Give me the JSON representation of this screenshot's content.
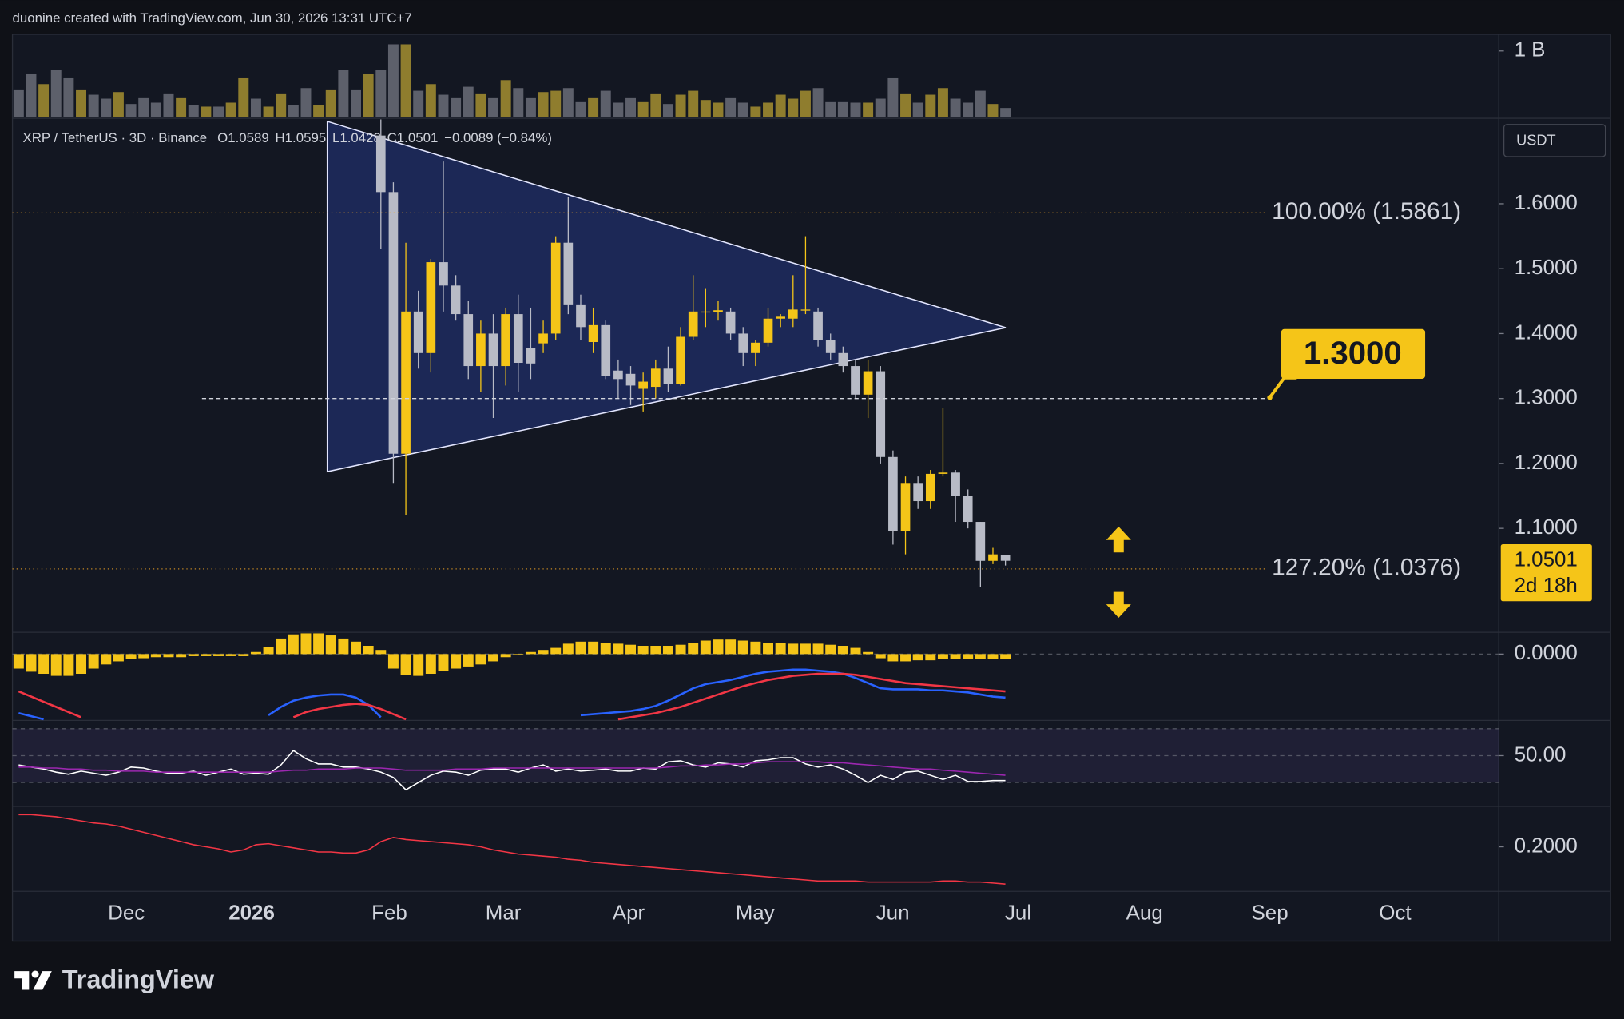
{
  "header": "duonine created with TradingView.com, Jun 30, 2026 13:31 UTC+7",
  "watermark": "TradingView",
  "chart_data": [
    {
      "type": "candlestick",
      "title": "XRP / TetherUS · 3D · Binance",
      "legend": [
        "O1.0589",
        "H1.0595",
        "L1.0428",
        "C1.0501",
        "−0.0089 (−0.84%)"
      ],
      "currency": "USDT",
      "x_labels": [
        "Dec",
        "2026",
        "Feb",
        "Mar",
        "Apr",
        "May",
        "Jun",
        "Jul",
        "Aug",
        "Sep",
        "Oct"
      ],
      "open": [
        1.705,
        1.618,
        1.215,
        1.434,
        1.37,
        1.51,
        1.474,
        1.43,
        1.35,
        1.4,
        1.35,
        1.43,
        1.378,
        1.385,
        1.4,
        1.54,
        1.445,
        1.387,
        1.413,
        1.343,
        1.338,
        1.315,
        1.318,
        1.346,
        1.322,
        1.395,
        1.433,
        1.433,
        1.434,
        1.4,
        1.37,
        1.386,
        1.423,
        1.423,
        1.436,
        1.434,
        1.39,
        1.37,
        1.35,
        1.306,
        1.342,
        1.21,
        1.096,
        1.17,
        1.142,
        1.184,
        1.186,
        1.15,
        1.11,
        1.05,
        1.0589
      ],
      "high": [
        1.73,
        1.633,
        1.54,
        1.466,
        1.515,
        1.665,
        1.49,
        1.45,
        1.42,
        1.43,
        1.44,
        1.46,
        1.44,
        1.42,
        1.55,
        1.61,
        1.46,
        1.44,
        1.42,
        1.36,
        1.35,
        1.34,
        1.36,
        1.38,
        1.41,
        1.49,
        1.47,
        1.45,
        1.44,
        1.41,
        1.39,
        1.44,
        1.43,
        1.49,
        1.55,
        1.44,
        1.4,
        1.38,
        1.36,
        1.36,
        1.35,
        1.22,
        1.18,
        1.18,
        1.19,
        1.285,
        1.19,
        1.16,
        1.11,
        1.07,
        1.0595
      ],
      "low": [
        1.53,
        1.17,
        1.12,
        1.346,
        1.34,
        1.434,
        1.42,
        1.33,
        1.31,
        1.27,
        1.32,
        1.31,
        1.33,
        1.37,
        1.39,
        1.43,
        1.39,
        1.37,
        1.33,
        1.3,
        1.29,
        1.28,
        1.3,
        1.31,
        1.32,
        1.39,
        1.41,
        1.42,
        1.39,
        1.35,
        1.35,
        1.38,
        1.41,
        1.41,
        1.43,
        1.38,
        1.36,
        1.34,
        1.3,
        1.27,
        1.2,
        1.075,
        1.06,
        1.13,
        1.13,
        1.18,
        1.11,
        1.1,
        1.01,
        1.045,
        1.0428
      ],
      "close": [
        1.618,
        1.215,
        1.434,
        1.37,
        1.51,
        1.474,
        1.43,
        1.35,
        1.4,
        1.35,
        1.43,
        1.355,
        1.354,
        1.4,
        1.54,
        1.445,
        1.41,
        1.413,
        1.335,
        1.33,
        1.32,
        1.326,
        1.346,
        1.322,
        1.395,
        1.434,
        1.434,
        1.436,
        1.4,
        1.37,
        1.386,
        1.423,
        1.426,
        1.437,
        1.437,
        1.39,
        1.37,
        1.35,
        1.306,
        1.342,
        1.21,
        1.096,
        1.17,
        1.142,
        1.184,
        1.186,
        1.15,
        1.11,
        1.05,
        1.06,
        1.0501
      ],
      "up_color": "#f5c518",
      "down_color": "#b8bbc6",
      "ylim": [
        0.94,
        1.73
      ],
      "yticks": [
        {
          "value": 1.1,
          "label": "1.1000"
        },
        {
          "value": 1.2,
          "label": "1.2000"
        },
        {
          "value": 1.3,
          "label": "1.3000"
        },
        {
          "value": 1.4,
          "label": "1.4000"
        },
        {
          "value": 1.5,
          "label": "1.5000"
        },
        {
          "value": 1.6,
          "label": "1.6000"
        }
      ],
      "fib_levels": [
        {
          "value": 1.5861,
          "label": "100.00% (1.5861)"
        },
        {
          "value": 1.0376,
          "label": "127.20% (1.0376)"
        }
      ],
      "key_level": {
        "value": 1.3,
        "label": "1.3000"
      },
      "last_price": {
        "value": 1.0501,
        "label": "1.0501"
      },
      "countdown": "2d 18h"
    },
    {
      "type": "bar",
      "ylim": [
        0,
        1.25
      ],
      "yticks": [
        {
          "value": 1,
          "label": "1 B"
        }
      ],
      "series": [
        {
          "color": "#8f7d2e",
          "values": [
            null,
            null,
            0.5,
            null,
            null,
            0.42,
            null,
            null,
            0.38,
            null,
            null,
            null,
            null,
            0.3,
            null,
            0.16,
            null,
            0.22,
            0.6,
            null,
            0.16,
            0.36,
            null,
            null,
            0.18,
            0.42,
            null,
            null,
            0.66,
            null,
            null,
            1.1,
            null,
            0.5,
            null,
            null,
            null,
            0.36,
            null,
            0.56,
            null,
            null,
            0.38,
            0.4,
            null,
            null,
            0.3,
            null,
            null,
            null,
            0.24,
            0.36,
            null,
            0.34,
            0.4,
            0.26,
            0.22,
            null,
            null,
            0.16,
            0.22,
            0.34,
            0.28,
            0.4,
            null,
            null,
            null,
            null,
            0.22,
            null,
            null,
            0.36,
            null,
            0.34,
            0.44,
            null,
            null,
            null,
            0.2,
            null
          ]
        },
        {
          "color": "#5d606b",
          "values": [
            0.42,
            0.66,
            null,
            0.72,
            0.6,
            null,
            0.34,
            0.28,
            null,
            0.2,
            0.3,
            0.22,
            0.36,
            null,
            0.18,
            null,
            0.16,
            null,
            null,
            0.28,
            null,
            null,
            0.18,
            0.44,
            null,
            null,
            0.72,
            0.42,
            null,
            0.72,
            1.1,
            null,
            0.4,
            null,
            0.34,
            0.3,
            0.46,
            null,
            0.3,
            null,
            0.44,
            0.3,
            null,
            null,
            0.44,
            0.24,
            null,
            0.4,
            0.22,
            0.3,
            null,
            null,
            0.2,
            null,
            null,
            null,
            null,
            0.3,
            0.22,
            null,
            null,
            null,
            null,
            null,
            0.44,
            0.24,
            0.24,
            0.22,
            null,
            0.28,
            0.6,
            null,
            0.22,
            null,
            null,
            0.28,
            0.22,
            0.4,
            null,
            0.14
          ]
        }
      ]
    },
    {
      "type": "macd",
      "ylim": [
        -0.064,
        0.021
      ],
      "yticks": [
        {
          "value": 0,
          "label": "0.0000"
        }
      ],
      "histogram": {
        "color": "#f5c518",
        "values": [
          -0.014,
          -0.017,
          -0.019,
          -0.021,
          -0.021,
          -0.019,
          -0.014,
          -0.01,
          -0.007,
          -0.005,
          -0.004,
          -0.003,
          -0.003,
          -0.003,
          -0.002,
          -0.002,
          -0.002,
          -0.002,
          -0.002,
          0.002,
          0.007,
          0.015,
          0.019,
          0.02,
          0.02,
          0.018,
          0.015,
          0.012,
          0.008,
          0.004,
          -0.014,
          -0.02,
          -0.021,
          -0.019,
          -0.016,
          -0.014,
          -0.012,
          -0.01,
          -0.007,
          -0.003,
          -0.001,
          0.002,
          0.004,
          0.006,
          0.01,
          0.012,
          0.012,
          0.011,
          0.01,
          0.009,
          0.008,
          0.008,
          0.008,
          0.009,
          0.011,
          0.013,
          0.014,
          0.014,
          0.013,
          0.012,
          0.011,
          0.011,
          0.01,
          0.01,
          0.01,
          0.009,
          0.008,
          0.006,
          0.002,
          -0.004,
          -0.007,
          -0.007,
          -0.006,
          -0.006,
          -0.005,
          -0.005,
          -0.005,
          -0.005,
          -0.005,
          -0.005
        ]
      },
      "series": [
        {
          "color": "#2962ff",
          "values": [
            -0.057,
            -0.06,
            -0.063,
            null,
            null,
            null,
            null,
            null,
            null,
            null,
            null,
            null,
            null,
            null,
            null,
            null,
            null,
            null,
            null,
            null,
            -0.059,
            -0.051,
            -0.045,
            -0.042,
            -0.04,
            -0.039,
            -0.039,
            -0.042,
            -0.049,
            -0.061,
            null,
            null,
            null,
            null,
            null,
            null,
            null,
            null,
            null,
            null,
            null,
            null,
            null,
            null,
            null,
            -0.059,
            -0.058,
            -0.057,
            -0.056,
            -0.055,
            -0.053,
            -0.05,
            -0.045,
            -0.039,
            -0.033,
            -0.029,
            -0.027,
            -0.025,
            -0.022,
            -0.019,
            -0.017,
            -0.016,
            -0.015,
            -0.015,
            -0.016,
            -0.017,
            -0.019,
            -0.023,
            -0.028,
            -0.033,
            -0.034,
            -0.034,
            -0.034,
            -0.035,
            -0.035,
            -0.036,
            -0.037,
            -0.039,
            -0.041,
            -0.042
          ]
        },
        {
          "color": "#f23645",
          "values": [
            -0.036,
            -0.041,
            -0.046,
            -0.051,
            -0.056,
            -0.061,
            null,
            null,
            null,
            null,
            null,
            null,
            null,
            null,
            null,
            null,
            null,
            null,
            null,
            null,
            null,
            null,
            -0.061,
            -0.056,
            -0.053,
            -0.051,
            -0.049,
            -0.048,
            -0.049,
            -0.053,
            -0.058,
            -0.063,
            null,
            null,
            null,
            null,
            null,
            null,
            null,
            null,
            null,
            null,
            null,
            null,
            null,
            null,
            null,
            null,
            -0.063,
            -0.061,
            -0.059,
            -0.057,
            -0.054,
            -0.051,
            -0.047,
            -0.043,
            -0.039,
            -0.035,
            -0.031,
            -0.028,
            -0.025,
            -0.023,
            -0.021,
            -0.02,
            -0.019,
            -0.019,
            -0.019,
            -0.02,
            -0.022,
            -0.024,
            -0.026,
            -0.028,
            -0.029,
            -0.03,
            -0.031,
            -0.032,
            -0.033,
            -0.034,
            -0.035,
            -0.036
          ]
        }
      ]
    },
    {
      "type": "line",
      "ylim": [
        12.3,
        76.2
      ],
      "yticks": [
        {
          "value": 50,
          "label": "50.00"
        }
      ],
      "band": [
        30,
        70
      ],
      "band_color": "#7e57c2",
      "series": [
        {
          "color": "#ffffff",
          "values": [
            43.1,
            41.5,
            40.0,
            37.7,
            36.2,
            38.5,
            36.9,
            35.4,
            37.7,
            41.5,
            40.8,
            38.5,
            36.9,
            36.9,
            38.5,
            35.4,
            37.7,
            40.0,
            36.2,
            36.9,
            36.2,
            43.1,
            53.8,
            47.7,
            43.8,
            43.8,
            41.5,
            41.5,
            40.0,
            37.7,
            33.8,
            24.6,
            30.0,
            35.4,
            38.5,
            37.7,
            35.4,
            39.2,
            40.0,
            40.0,
            37.7,
            40.8,
            43.1,
            38.5,
            40.0,
            38.5,
            39.2,
            40.0,
            38.5,
            38.5,
            40.8,
            40.0,
            45.4,
            46.2,
            43.1,
            41.5,
            44.6,
            43.8,
            41.5,
            46.2,
            46.9,
            48.5,
            48.5,
            43.8,
            41.5,
            43.1,
            40.0,
            35.4,
            30.0,
            35.4,
            32.3,
            37.7,
            38.5,
            35.4,
            32.3,
            35.4,
            30.8,
            30.8,
            31.5,
            31.5
          ]
        },
        {
          "color": "#9c27b0",
          "values": [
            41.5,
            41.5,
            40.8,
            40.8,
            40.0,
            40.0,
            39.2,
            39.2,
            38.5,
            38.5,
            38.5,
            37.7,
            37.7,
            37.7,
            37.7,
            37.7,
            37.7,
            37.7,
            37.7,
            37.7,
            37.7,
            38.5,
            39.2,
            39.2,
            40.0,
            40.0,
            40.0,
            40.8,
            40.8,
            40.8,
            40.0,
            39.2,
            39.2,
            39.2,
            39.2,
            40.0,
            40.0,
            40.0,
            40.8,
            40.8,
            40.8,
            40.8,
            40.8,
            40.8,
            40.8,
            40.8,
            40.8,
            40.8,
            40.8,
            40.8,
            40.8,
            40.8,
            41.5,
            42.3,
            42.3,
            43.1,
            43.1,
            43.8,
            43.8,
            44.6,
            45.4,
            45.4,
            45.4,
            45.4,
            45.4,
            44.6,
            44.6,
            43.8,
            43.1,
            42.3,
            41.5,
            40.8,
            40.0,
            40.0,
            39.2,
            38.5,
            37.7,
            36.9,
            36.2,
            35.4
          ]
        }
      ]
    },
    {
      "type": "line",
      "ylim": [
        0.114,
        0.278
      ],
      "yticks": [
        {
          "value": 0.2,
          "label": "0.2000"
        }
      ],
      "series": [
        {
          "color": "#f23645",
          "values": [
            0.262,
            0.262,
            0.26,
            0.258,
            0.254,
            0.25,
            0.246,
            0.244,
            0.24,
            0.234,
            0.228,
            0.222,
            0.216,
            0.21,
            0.204,
            0.2,
            0.196,
            0.19,
            0.194,
            0.204,
            0.206,
            0.202,
            0.198,
            0.194,
            0.19,
            0.19,
            0.188,
            0.188,
            0.194,
            0.21,
            0.218,
            0.214,
            0.212,
            0.21,
            0.208,
            0.206,
            0.204,
            0.2,
            0.194,
            0.19,
            0.186,
            0.184,
            0.182,
            0.18,
            0.176,
            0.174,
            0.17,
            0.168,
            0.166,
            0.164,
            0.162,
            0.16,
            0.158,
            0.156,
            0.154,
            0.152,
            0.15,
            0.148,
            0.146,
            0.144,
            0.142,
            0.14,
            0.138,
            0.136,
            0.134,
            0.134,
            0.134,
            0.134,
            0.132,
            0.132,
            0.132,
            0.132,
            0.132,
            0.132,
            0.134,
            0.134,
            0.132,
            0.132,
            0.13,
            0.128
          ]
        }
      ]
    }
  ]
}
